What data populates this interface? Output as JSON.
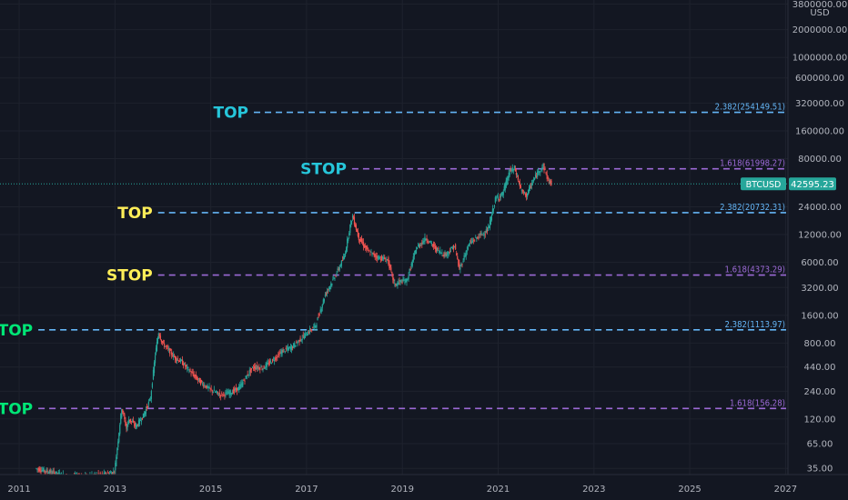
{
  "chart_data": {
    "type": "line",
    "symbol": "BTCUSD",
    "last_price": "42595.23",
    "last_value": 42595.23,
    "currency": "USD",
    "scale": "log",
    "ylim": [
      30,
      4200000
    ],
    "xlim": [
      2010.6,
      2027.05
    ],
    "grid": true,
    "y_ticks": [
      {
        "v": 3800000,
        "label": "3800000.00"
      },
      {
        "v": 2000000,
        "label": "2000000.00"
      },
      {
        "v": 1000000,
        "label": "1000000.00"
      },
      {
        "v": 600000,
        "label": "600000.00"
      },
      {
        "v": 320000,
        "label": "320000.00"
      },
      {
        "v": 160000,
        "label": "160000.00"
      },
      {
        "v": 80000,
        "label": "80000.00"
      },
      {
        "v": 24000,
        "label": "24000.00"
      },
      {
        "v": 12000,
        "label": "12000.00"
      },
      {
        "v": 6000,
        "label": "6000.00"
      },
      {
        "v": 3200,
        "label": "3200.00"
      },
      {
        "v": 1600,
        "label": "1600.00"
      },
      {
        "v": 800,
        "label": "800.00"
      },
      {
        "v": 440,
        "label": "440.00"
      },
      {
        "v": 240,
        "label": "240.00"
      },
      {
        "v": 120,
        "label": "120.00"
      },
      {
        "v": 65,
        "label": "65.00"
      },
      {
        "v": 35,
        "label": "35.00"
      }
    ],
    "x_ticks": [
      "2011",
      "2013",
      "2015",
      "2017",
      "2019",
      "2021",
      "2023",
      "2025",
      "2027"
    ],
    "levels": [
      {
        "value": 254149.51,
        "label": "2.382(254149.51)",
        "color": "#64b5f6",
        "from": 2015.9
      },
      {
        "value": 61998.27,
        "label": "1.618(61998.27)",
        "color": "#9c6ad6",
        "from": 2017.95
      },
      {
        "value": 20732.31,
        "label": "2.382(20732.31)",
        "color": "#64b5f6",
        "from": 2013.9
      },
      {
        "value": 4373.29,
        "label": "1.618(4373.29)",
        "color": "#9c6ad6",
        "from": 2013.9
      },
      {
        "value": 1113.97,
        "label": "2.382(1113.97)",
        "color": "#64b5f6",
        "from": 2011.4
      },
      {
        "value": 156.28,
        "label": "1.618(156.28)",
        "color": "#9c6ad6",
        "from": 2011.4
      }
    ],
    "annotations": [
      {
        "text": "TOP",
        "color": "#26c6da",
        "x": 2014.5,
        "y": 254149.51
      },
      {
        "text": "STOP",
        "color": "#26c6da",
        "x": 2014.5,
        "y": 61998.27
      },
      {
        "text": "TOP",
        "color": "#ffee58",
        "x": 2012.5,
        "y": 20732.31
      },
      {
        "text": "STOP",
        "color": "#ffee58",
        "x": 2012.5,
        "y": 4373.29
      },
      {
        "text": "TOP",
        "color": "#00e676",
        "x": 2010.5,
        "y": 1113.97
      },
      {
        "text": "STOP",
        "color": "#00e676",
        "x": 2010.5,
        "y": 156.28
      }
    ],
    "series": [
      {
        "up_color": "#26a69a",
        "down_color": "#ef5350",
        "x": [
          2011.35,
          2012.1,
          2012.8,
          2013.0,
          2013.15,
          2013.25,
          2013.3,
          2013.45,
          2013.6,
          2013.75,
          2013.85,
          2013.92,
          2014.0,
          2014.1,
          2014.25,
          2014.4,
          2014.6,
          2014.8,
          2015.0,
          2015.2,
          2015.4,
          2015.6,
          2015.8,
          2015.9,
          2016.1,
          2016.3,
          2016.5,
          2016.7,
          2016.9,
          2017.0,
          2017.2,
          2017.4,
          2017.6,
          2017.8,
          2017.92,
          2017.97,
          2018.1,
          2018.3,
          2018.5,
          2018.7,
          2018.85,
          2018.95,
          2019.1,
          2019.3,
          2019.5,
          2019.7,
          2019.9,
          2020.1,
          2020.2,
          2020.4,
          2020.6,
          2020.8,
          2020.95,
          2021.1,
          2021.25,
          2021.35,
          2021.5,
          2021.6,
          2021.75,
          2021.87,
          2021.95,
          2022.05,
          2022.12
        ],
        "y": [
          35,
          28,
          30,
          32,
          160,
          95,
          120,
          100,
          130,
          200,
          600,
          1050,
          800,
          700,
          560,
          500,
          380,
          300,
          250,
          220,
          230,
          260,
          380,
          440,
          430,
          520,
          650,
          720,
          900,
          1000,
          1250,
          2700,
          4200,
          7000,
          15000,
          19000,
          11000,
          7800,
          6800,
          6400,
          3400,
          3700,
          3800,
          8500,
          11000,
          8500,
          7200,
          9000,
          5000,
          9500,
          11500,
          13500,
          29000,
          33000,
          58000,
          63000,
          35000,
          32000,
          47000,
          60000,
          67000,
          47000,
          42595.23
        ]
      }
    ]
  },
  "axis": {
    "currency": "USD"
  },
  "price_tag": {
    "symbol": "BTCUSD",
    "value": "42595.23"
  }
}
